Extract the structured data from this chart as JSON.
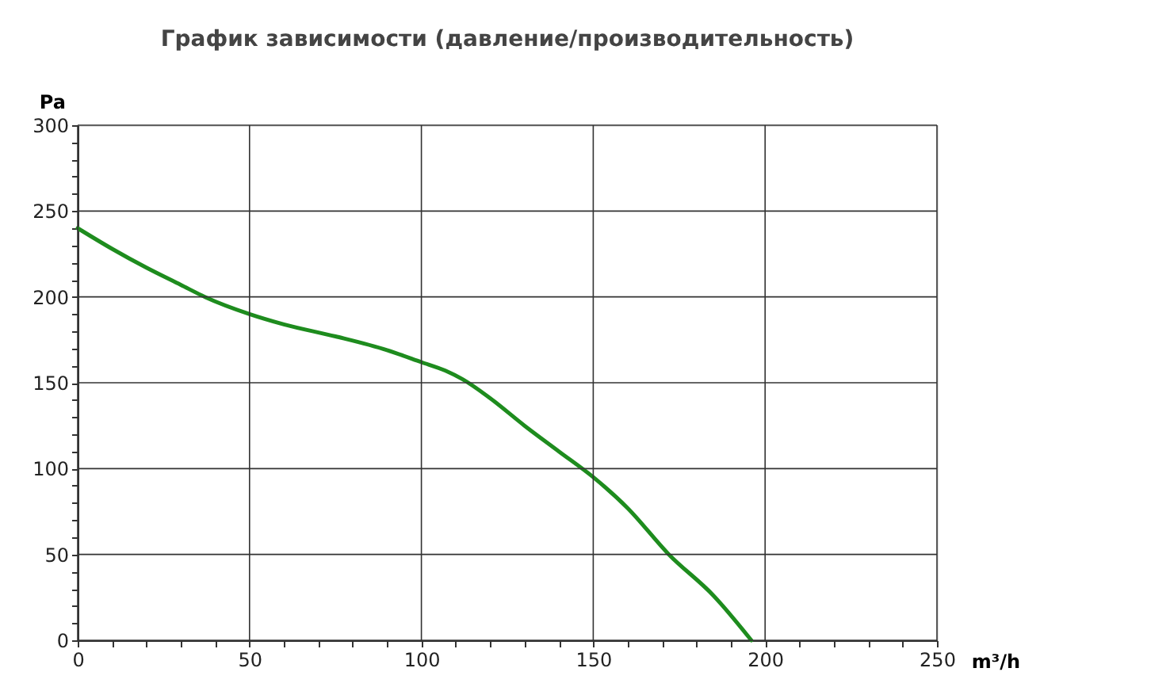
{
  "chart_data": {
    "type": "line",
    "title": "График зависимости (давление/производительность)",
    "xlabel": "m³/h",
    "ylabel": "Pa",
    "x": [
      0,
      10,
      20,
      30,
      37,
      50,
      60,
      75,
      90,
      100,
      107,
      112,
      120,
      130,
      140,
      150,
      160,
      172,
      185,
      196
    ],
    "series": [
      {
        "color": "#1e8c1e",
        "values": [
          240,
          228,
          217,
          207,
          200,
          190,
          184,
          177,
          169,
          162,
          157,
          152,
          141,
          125,
          110,
          95,
          77,
          50,
          26,
          0
        ]
      }
    ],
    "xlim": [
      0,
      250
    ],
    "ylim": [
      0,
      300
    ],
    "xticks": [
      0,
      {
        "value": 10,
        "label": null
      },
      {
        "value": 20,
        "label": null
      },
      {
        "value": 30,
        "label": null
      },
      {
        "value": 40,
        "label": null
      },
      50,
      {
        "value": 60,
        "label": null
      },
      {
        "value": 70,
        "label": null
      },
      {
        "value": 80,
        "label": null
      },
      {
        "value": 90,
        "label": null
      },
      100,
      {
        "value": 110,
        "label": null
      },
      {
        "value": 120,
        "label": null
      },
      {
        "value": 130,
        "label": null
      },
      {
        "value": 140,
        "label": null
      },
      150,
      {
        "value": 160,
        "label": null
      },
      {
        "value": 170,
        "label": null
      },
      {
        "value": 180,
        "label": null
      },
      {
        "value": 190,
        "label": null
      },
      200,
      {
        "value": 210,
        "label": null
      },
      {
        "value": 220,
        "label": null
      },
      {
        "value": 230,
        "label": null
      },
      {
        "value": 240,
        "label": null
      },
      250
    ],
    "yticks": [
      0,
      {
        "value": 10,
        "label": null
      },
      {
        "value": 20,
        "label": null
      },
      {
        "value": 30,
        "label": null
      },
      {
        "value": 40,
        "label": null
      },
      50,
      {
        "value": 60,
        "label": null
      },
      {
        "value": 70,
        "label": null
      },
      {
        "value": 80,
        "label": null
      },
      {
        "value": 90,
        "label": null
      },
      100,
      {
        "value": 110,
        "label": null
      },
      {
        "value": 120,
        "label": null
      },
      {
        "value": 130,
        "label": null
      },
      {
        "value": 140,
        "label": null
      },
      150,
      {
        "value": 160,
        "label": null
      },
      {
        "value": 170,
        "label": null
      },
      {
        "value": 180,
        "label": null
      },
      {
        "value": 190,
        "label": null
      },
      200,
      {
        "value": 210,
        "label": null
      },
      {
        "value": 220,
        "label": null
      },
      {
        "value": 230,
        "label": null
      },
      {
        "value": 240,
        "label": null
      },
      250,
      {
        "value": 260,
        "label": null
      },
      {
        "value": 270,
        "label": null
      },
      {
        "value": 280,
        "label": null
      },
      {
        "value": 290,
        "label": null
      },
      300
    ],
    "grid": true,
    "marker": "none",
    "line_style": "solid"
  }
}
